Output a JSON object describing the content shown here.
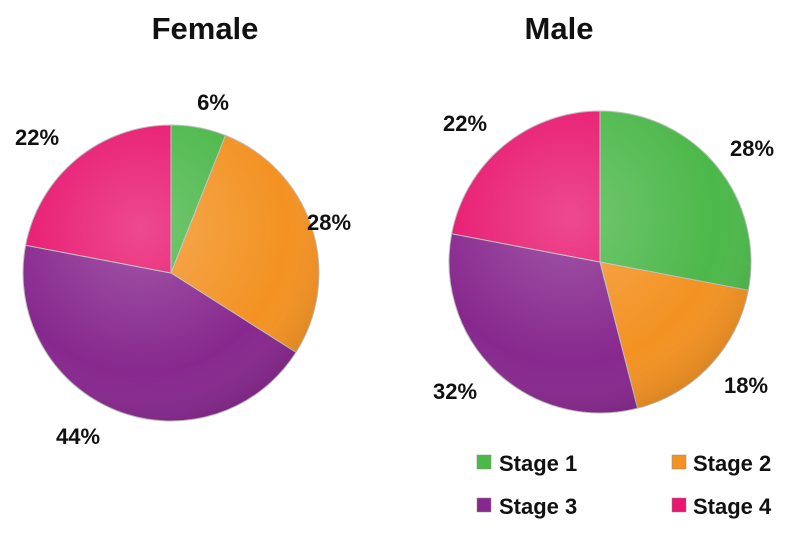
{
  "chart_data": [
    {
      "type": "pie",
      "title": "Female",
      "categories": [
        "Stage 1",
        "Stage 2",
        "Stage 3",
        "Stage 4"
      ],
      "values": [
        6,
        28,
        44,
        22
      ],
      "labels": [
        "6%",
        "28%",
        "44%",
        "22%"
      ]
    },
    {
      "type": "pie",
      "title": "Male",
      "categories": [
        "Stage 1",
        "Stage 2",
        "Stage 3",
        "Stage 4"
      ],
      "values": [
        28,
        18,
        32,
        22
      ],
      "labels": [
        "28%",
        "18%",
        "32%",
        "22%"
      ]
    }
  ],
  "legend": {
    "placement": "bottom-right",
    "items": [
      {
        "label": "Stage 1",
        "color": "#4cb84a"
      },
      {
        "label": "Stage 2",
        "color": "#f39222"
      },
      {
        "label": "Stage 3",
        "color": "#87288e"
      },
      {
        "label": "Stage 4",
        "color": "#e8176f"
      }
    ]
  }
}
